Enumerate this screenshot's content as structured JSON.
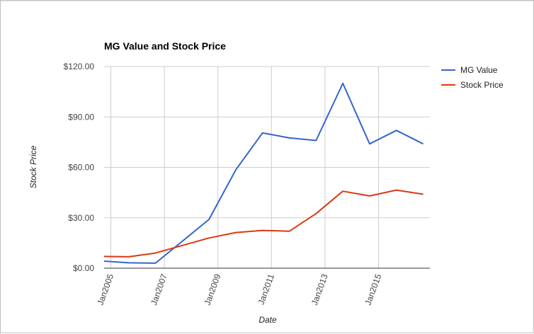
{
  "chart_data": {
    "type": "line",
    "title": "MG Value and Stock Price",
    "xlabel": "Date",
    "ylabel": "Stock Price",
    "x_tick_labels": [
      "Jan2005",
      "Jan2007",
      "Jan2009",
      "Jan2011",
      "Jan2013",
      "Jan2015"
    ],
    "y_tick_labels": [
      "$0.00",
      "$30.00",
      "$60.00",
      "$90.00",
      "$120.00"
    ],
    "y_ticks": [
      0,
      30,
      60,
      90,
      120
    ],
    "ylim": [
      0,
      120
    ],
    "xlim": [
      "2004-10",
      "2016-12"
    ],
    "grid": true,
    "legend_position": "right",
    "series": [
      {
        "name": "MG Value",
        "color": "#3366cc",
        "points": [
          {
            "x": "2004-10",
            "y": 4.2
          },
          {
            "x": "2005-09",
            "y": 3.2
          },
          {
            "x": "2006-09",
            "y": 3.0
          },
          {
            "x": "2008-09",
            "y": 29.0
          },
          {
            "x": "2009-09",
            "y": 58.5
          },
          {
            "x": "2010-09",
            "y": 80.5
          },
          {
            "x": "2011-09",
            "y": 77.5
          },
          {
            "x": "2012-09",
            "y": 76.0
          },
          {
            "x": "2013-09",
            "y": 110.0
          },
          {
            "x": "2014-09",
            "y": 74.0
          },
          {
            "x": "2015-09",
            "y": 82.0
          },
          {
            "x": "2016-09",
            "y": 74.0
          }
        ]
      },
      {
        "name": "Stock Price",
        "color": "#dc3912",
        "points": [
          {
            "x": "2004-10",
            "y": 7.0
          },
          {
            "x": "2005-09",
            "y": 6.8
          },
          {
            "x": "2006-09",
            "y": 9.0
          },
          {
            "x": "2007-09",
            "y": 13.5
          },
          {
            "x": "2008-09",
            "y": 18.0
          },
          {
            "x": "2009-09",
            "y": 21.2
          },
          {
            "x": "2010-09",
            "y": 22.5
          },
          {
            "x": "2011-09",
            "y": 22.0
          },
          {
            "x": "2012-09",
            "y": 32.5
          },
          {
            "x": "2013-09",
            "y": 45.8
          },
          {
            "x": "2014-09",
            "y": 43.0
          },
          {
            "x": "2015-09",
            "y": 46.5
          },
          {
            "x": "2016-09",
            "y": 44.0
          }
        ]
      }
    ],
    "colors": {
      "grid": "#cccccc",
      "baseline": "#333333",
      "background": "#ffffff"
    }
  }
}
